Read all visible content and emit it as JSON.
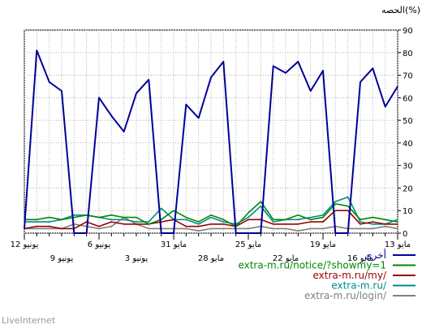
{
  "chart_data": {
    "type": "line",
    "ylabel": "الحصه(%)",
    "ylim": [
      0,
      90
    ],
    "yticks": [
      0,
      10,
      20,
      30,
      40,
      50,
      60,
      70,
      80,
      90
    ],
    "x_direction": "right-to-left",
    "x_days": [
      "13 مايو",
      "14 مايو",
      "15 مايو",
      "16 مايو",
      "17 مايو",
      "18 مايو",
      "19 مايو",
      "20 مايو",
      "21 مايو",
      "22 مايو",
      "23 مايو",
      "24 مايو",
      "25 مايو",
      "26 مايو",
      "27 مايو",
      "28 مايو",
      "29 مايو",
      "30 مايو",
      "31 مايو",
      "1 يونيو",
      "2 يونيو",
      "3 يونيو",
      "4 يونيو",
      "5 يونيو",
      "6 يونيو",
      "7 يونيو",
      "8 يونيو",
      "9 يونيو",
      "10 يونيو",
      "11 يونيو",
      "12 يونيو"
    ],
    "xtick_labels_row1": [
      "13 مايو",
      "19 مايو",
      "25 مايو",
      "31 مايو",
      "6 يونيو",
      "12 يونيو"
    ],
    "xtick_labels_row2": [
      "16 مايو",
      "22 مايو",
      "28 مايو",
      "3 يونيو",
      "9 يونيو"
    ],
    "grid": true,
    "legend_position": "bottom-right",
    "series": [
      {
        "name": "أخرى",
        "color": "#000099",
        "values": [
          65,
          56,
          73,
          67,
          0,
          0,
          72,
          63,
          76,
          71,
          74,
          0,
          0,
          0,
          76,
          69,
          51,
          57,
          0,
          0,
          68,
          62,
          45,
          52,
          60,
          0,
          0,
          63,
          67,
          81,
          2
        ]
      },
      {
        "name": "extra-m.ru/notice/?showmy=1",
        "color": "#008800",
        "values": [
          5,
          6,
          7,
          6,
          12,
          13,
          7,
          6,
          8,
          6,
          6,
          14,
          9,
          3,
          6,
          8,
          5,
          7,
          10,
          6,
          4,
          7,
          7,
          8,
          7,
          8,
          7,
          6,
          7,
          6,
          6
        ]
      },
      {
        "name": "extra-m.ru/my/",
        "color": "#990000",
        "values": [
          4,
          4,
          5,
          4,
          10,
          10,
          5,
          5,
          4,
          4,
          4,
          6,
          6,
          3,
          4,
          4,
          3,
          3,
          6,
          5,
          4,
          4,
          4,
          5,
          3,
          5,
          2,
          2,
          3,
          3,
          2
        ]
      },
      {
        "name": "extra-m.ru/",
        "color": "#008b8b",
        "values": [
          6,
          4,
          4,
          5,
          16,
          14,
          8,
          7,
          6,
          6,
          5,
          12,
          7,
          4,
          5,
          7,
          4,
          6,
          6,
          11,
          5,
          5,
          6,
          6,
          7,
          8,
          8,
          6,
          5,
          5,
          5
        ]
      },
      {
        "name": "extra-m.ru/login/",
        "color": "#808080",
        "values": [
          2,
          3,
          2,
          2,
          2,
          3,
          2,
          2,
          1,
          2,
          2,
          3,
          2,
          2,
          2,
          2,
          1,
          2,
          2,
          2,
          2,
          4,
          7,
          3,
          2,
          3,
          4,
          2,
          2,
          2,
          2
        ]
      }
    ]
  },
  "footer": {
    "brand": "LiveInternet"
  }
}
